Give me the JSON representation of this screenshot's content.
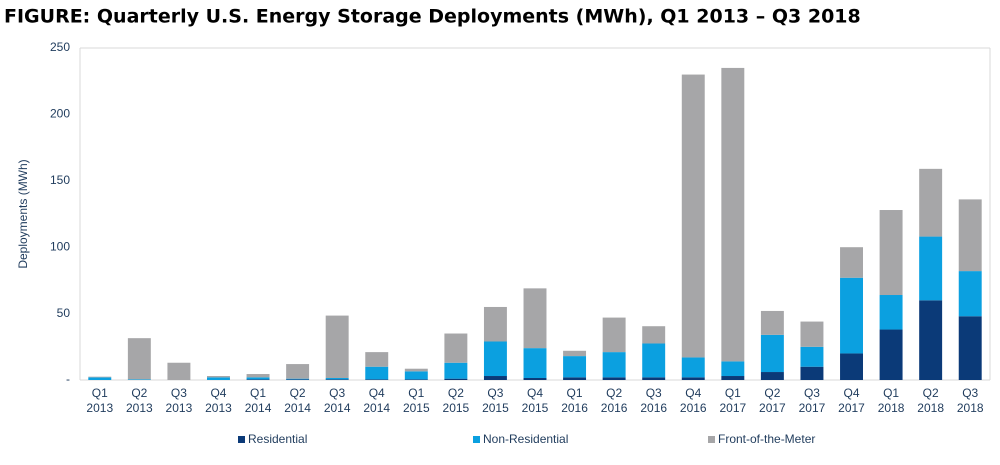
{
  "chart_data": {
    "type": "stacked_bar",
    "title": "FIGURE: Quarterly U.S. Energy Storage Deployments (MWh), Q1 2013 – Q3 2018",
    "y_label": "Deployments (MWh)",
    "categories": [
      [
        "Q1",
        "2013"
      ],
      [
        "Q2",
        "2013"
      ],
      [
        "Q3",
        "2013"
      ],
      [
        "Q4",
        "2013"
      ],
      [
        "Q1",
        "2014"
      ],
      [
        "Q2",
        "2014"
      ],
      [
        "Q3",
        "2014"
      ],
      [
        "Q4",
        "2014"
      ],
      [
        "Q1",
        "2015"
      ],
      [
        "Q2",
        "2015"
      ],
      [
        "Q3",
        "2015"
      ],
      [
        "Q4",
        "2015"
      ],
      [
        "Q1",
        "2016"
      ],
      [
        "Q2",
        "2016"
      ],
      [
        "Q3",
        "2016"
      ],
      [
        "Q4",
        "2016"
      ],
      [
        "Q1",
        "2017"
      ],
      [
        "Q2",
        "2017"
      ],
      [
        "Q3",
        "2017"
      ],
      [
        "Q4",
        "2017"
      ],
      [
        "Q1",
        "2018"
      ],
      [
        "Q2",
        "2018"
      ],
      [
        "Q3",
        "2018"
      ]
    ],
    "series": [
      {
        "name": "Residential",
        "color": "#0b3a78",
        "values": [
          0,
          0,
          0,
          0,
          0.5,
          0.5,
          0.5,
          0.5,
          0.5,
          1,
          3,
          1.5,
          2,
          2,
          2,
          2,
          3,
          6,
          10,
          20,
          38,
          60,
          48
        ]
      },
      {
        "name": "Non-Residential",
        "color": "#0ba0e0",
        "values": [
          2,
          0.5,
          0,
          2,
          1.5,
          0.5,
          1,
          9.5,
          6,
          12,
          26,
          22.5,
          16,
          19,
          25.5,
          15,
          11,
          28,
          15,
          57,
          26,
          48,
          34
        ]
      },
      {
        "name": "Front-of-the-Meter",
        "color": "#a6a6a8",
        "values": [
          0.5,
          31,
          13,
          1,
          2.5,
          11,
          47,
          11,
          2,
          22,
          26,
          45,
          4,
          26,
          13,
          213,
          221,
          18,
          19,
          23,
          64,
          51,
          54
        ]
      }
    ],
    "ylim": [
      0,
      250
    ],
    "yticks": [
      {
        "value": 0,
        "label": "-"
      },
      50,
      100,
      150,
      200,
      250
    ]
  }
}
